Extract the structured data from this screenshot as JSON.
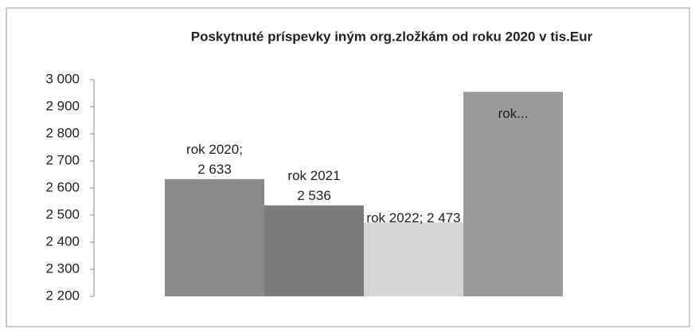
{
  "chart_data": {
    "type": "bar",
    "title": "Poskytnuté príspevky iným org.zložkám  od roku 2020  v tis.Eur",
    "categories": [
      null,
      null,
      null,
      null
    ],
    "values": [
      2633,
      2536,
      2473,
      2955
    ],
    "value_labels": [
      "rok 2020;\n2 633",
      "rok 2021\n2 536",
      "rok 2022; 2 473",
      "rok..."
    ],
    "colors": [
      "#8a8a8a",
      "#7c7c7c",
      "#d6d6d6",
      "#9a9a9a"
    ],
    "ylim": [
      2200,
      3000
    ],
    "yticks": [
      {
        "value": 2200,
        "label": "2 200"
      },
      {
        "value": 2300,
        "label": "2 300"
      },
      {
        "value": 2400,
        "label": "2 400"
      },
      {
        "value": 2500,
        "label": "2 500"
      },
      {
        "value": 2600,
        "label": "2 600"
      },
      {
        "value": 2700,
        "label": "2 700"
      },
      {
        "value": 2800,
        "label": "2 800"
      },
      {
        "value": 2900,
        "label": "2 900"
      },
      {
        "value": 3000,
        "label": "3 000"
      }
    ],
    "grid": false
  }
}
